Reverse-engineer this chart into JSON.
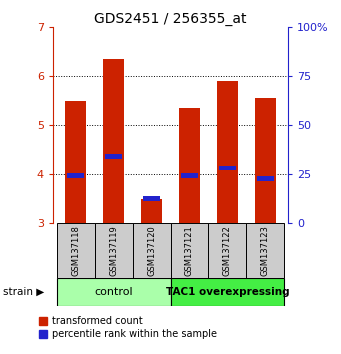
{
  "title": "GDS2451 / 256355_at",
  "samples": [
    "GSM137118",
    "GSM137119",
    "GSM137120",
    "GSM137121",
    "GSM137122",
    "GSM137123"
  ],
  "groups": [
    {
      "label": "control",
      "indices": [
        0,
        1,
        2
      ],
      "color": "#aaffaa"
    },
    {
      "label": "TAC1 overexpressing",
      "indices": [
        3,
        4,
        5
      ],
      "color": "#44ee44"
    }
  ],
  "red_bars_top": [
    5.48,
    6.33,
    3.48,
    5.35,
    5.9,
    5.55
  ],
  "red_bars_bottom": [
    3.0,
    3.0,
    3.0,
    3.0,
    3.0,
    3.0
  ],
  "blue_positions": [
    3.97,
    4.35,
    3.5,
    3.97,
    4.12,
    3.9
  ],
  "blue_bar_height": 0.1,
  "ylim": [
    3.0,
    7.0
  ],
  "yticks_left": [
    3,
    4,
    5,
    6,
    7
  ],
  "yticks_right_pct": [
    0,
    25,
    50,
    75,
    100
  ],
  "red_color": "#cc2200",
  "blue_color": "#2222cc",
  "sample_box_color": "#cccccc",
  "strain_arrow": "▶",
  "bar_width": 0.55
}
